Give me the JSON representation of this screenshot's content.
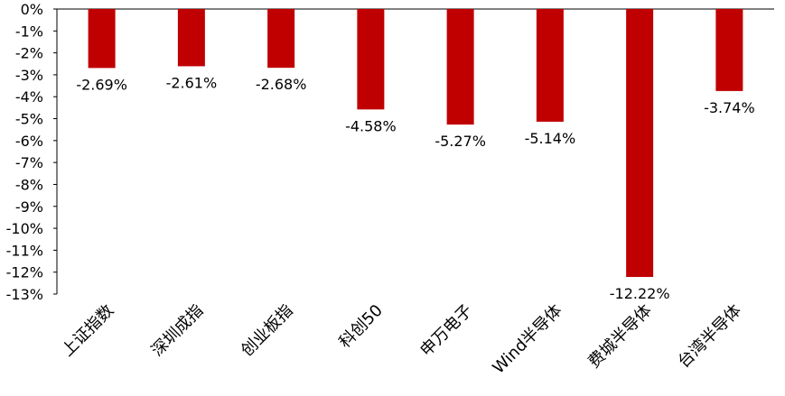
{
  "chart_data": {
    "type": "bar",
    "categories": [
      "上证指数",
      "深圳成指",
      "创业板指",
      "科创50",
      "申万电子",
      "Wind半导体",
      "费城半导体",
      "台湾半导体"
    ],
    "values": [
      -2.69,
      -2.61,
      -2.68,
      -4.58,
      -5.27,
      -5.14,
      -12.22,
      -3.74
    ],
    "value_labels": [
      "-2.69%",
      "-2.61%",
      "-2.68%",
      "-4.58%",
      "-5.27%",
      "-5.14%",
      "-12.22%",
      "-3.74%"
    ],
    "y_ticks": [
      "0%",
      "-1%",
      "-2%",
      "-3%",
      "-4%",
      "-5%",
      "-6%",
      "-7%",
      "-8%",
      "-9%",
      "-10%",
      "-11%",
      "-12%",
      "-13%"
    ],
    "ylim": [
      -13,
      0
    ],
    "bar_color": "#C00000",
    "grid": false,
    "legend": "none",
    "title": "",
    "xlabel": "",
    "ylabel": ""
  }
}
